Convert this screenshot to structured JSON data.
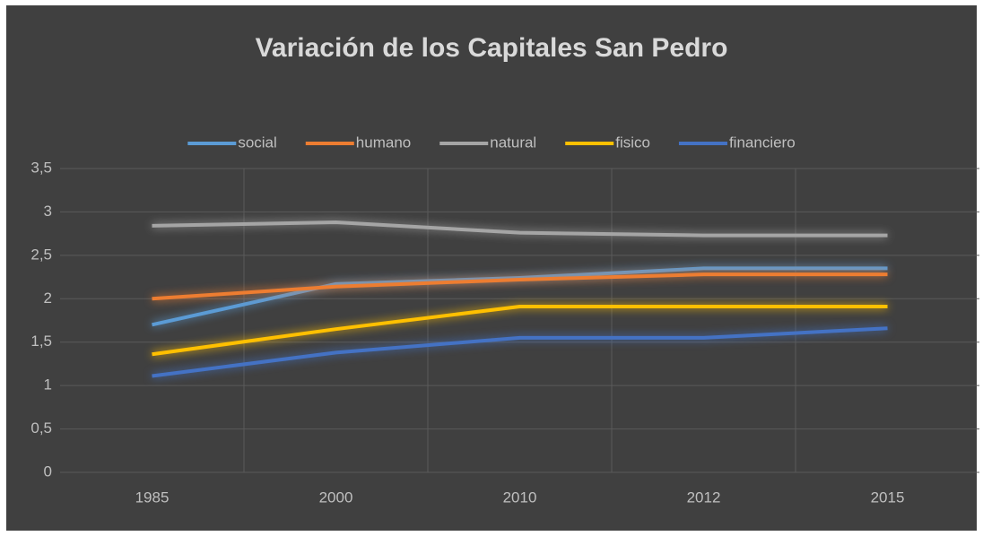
{
  "chart_data": {
    "type": "line",
    "title": "Variación de los Capitales San Pedro",
    "categories": [
      "1985",
      "2000",
      "2010",
      "2012",
      "2015"
    ],
    "series": [
      {
        "name": "social",
        "color": "#5b9bd5",
        "values": [
          1.7,
          2.17,
          2.24,
          2.35,
          2.35
        ]
      },
      {
        "name": "humano",
        "color": "#ed7d31",
        "values": [
          2.0,
          2.14,
          2.22,
          2.28,
          2.28
        ]
      },
      {
        "name": "natural",
        "color": "#a5a5a5",
        "values": [
          2.84,
          2.88,
          2.76,
          2.73,
          2.73
        ]
      },
      {
        "name": "fisico",
        "color": "#ffc000",
        "values": [
          1.36,
          1.65,
          1.91,
          1.91,
          1.91
        ]
      },
      {
        "name": "financiero",
        "color": "#4472c4",
        "values": [
          1.11,
          1.38,
          1.55,
          1.55,
          1.66
        ]
      }
    ],
    "ylim": [
      0,
      3.5
    ],
    "yticks": [
      0,
      {
        "value": 0.5,
        "label": "0,5"
      },
      1,
      {
        "value": 1.5,
        "label": "1,5"
      },
      2,
      {
        "value": 2.5,
        "label": "2,5"
      },
      3,
      {
        "value": 3.5,
        "label": "3,5"
      }
    ],
    "grid": true,
    "legend": "top"
  }
}
